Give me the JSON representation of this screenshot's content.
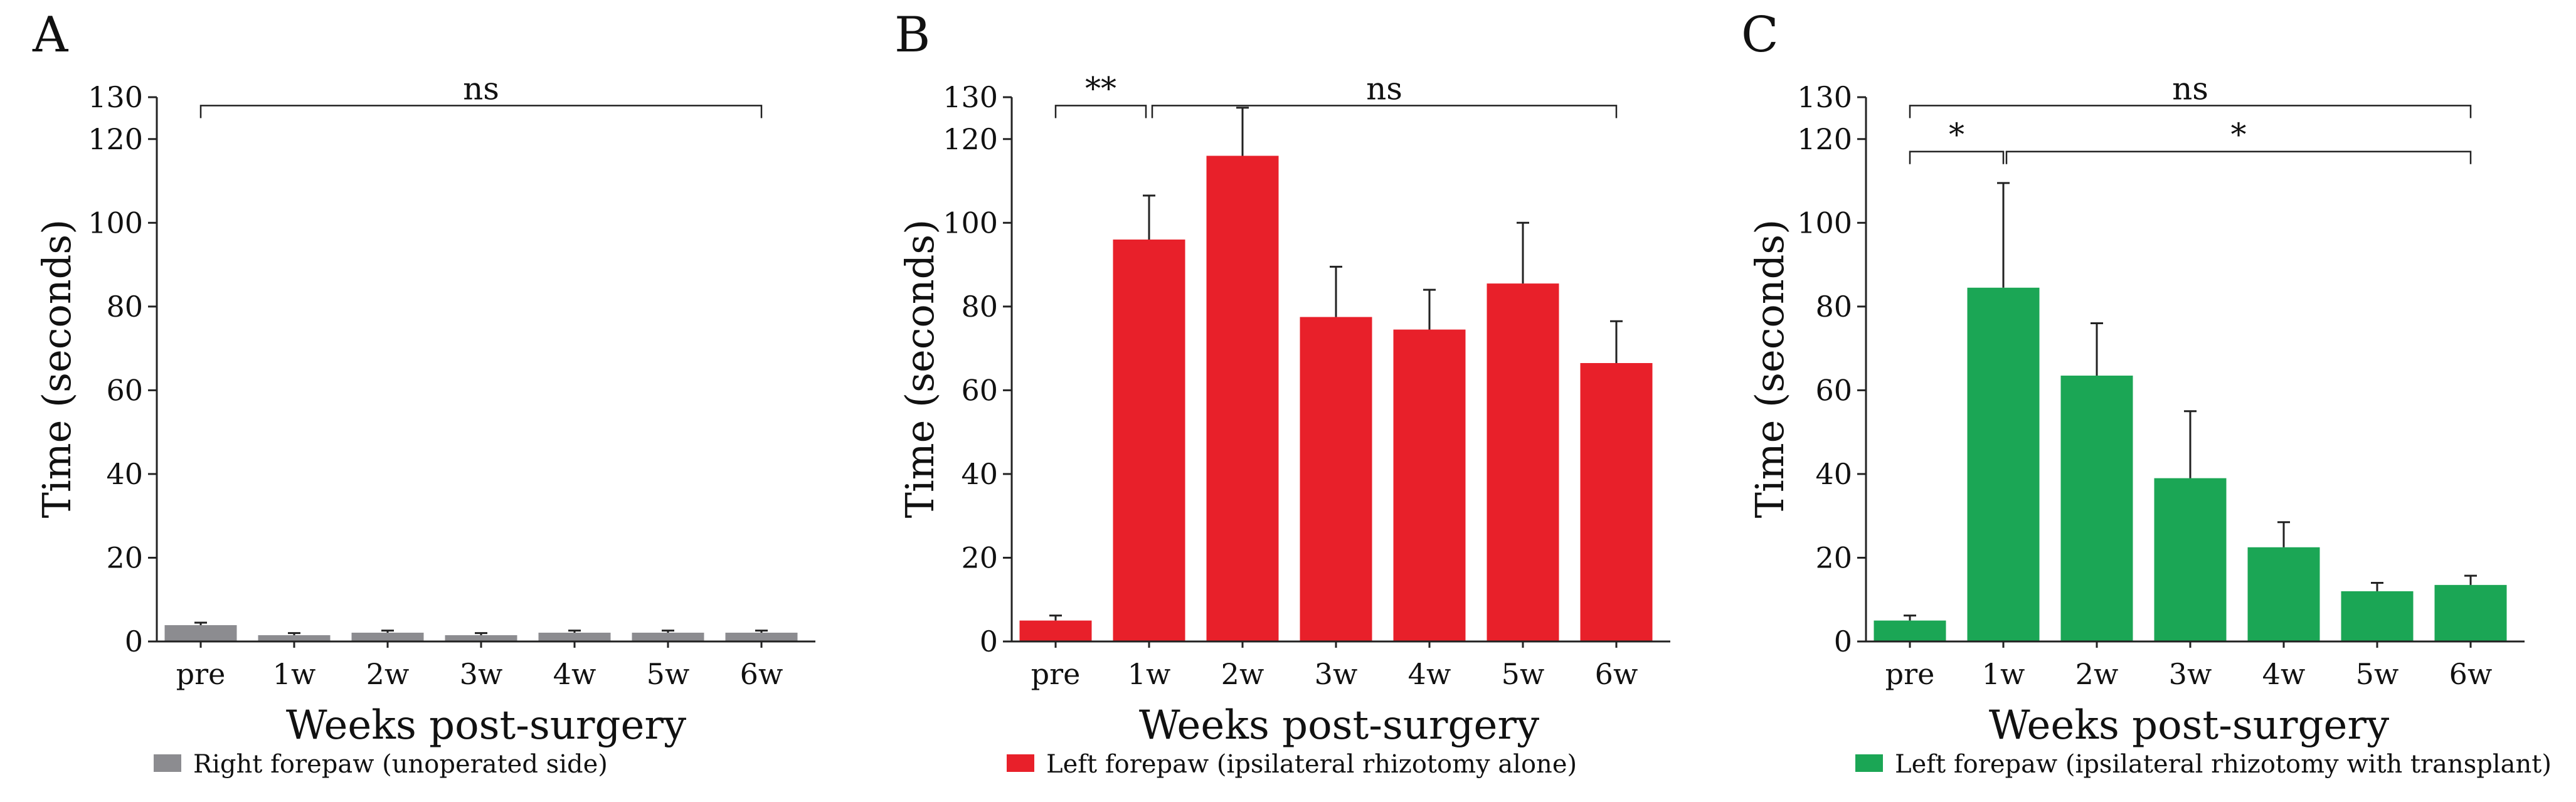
{
  "panels": [
    {
      "letter": "A",
      "chart_data": {
        "type": "bar",
        "categories": [
          "pre",
          "1w",
          "2w",
          "3w",
          "4w",
          "5w",
          "6w"
        ],
        "values": [
          3.9,
          1.5,
          2.1,
          1.5,
          2.1,
          2.1,
          2.1
        ],
        "errors": [
          0.6,
          0.5,
          0.5,
          0.5,
          0.5,
          0.5,
          0.5
        ],
        "xlabel": "Weeks post-surgery",
        "ylabel": "Time (seconds)",
        "ylim": [
          0,
          130
        ],
        "yticks": [
          0,
          20,
          40,
          60,
          80,
          100,
          120,
          130
        ],
        "grid": false,
        "color": "#8c8c90",
        "legend": "Right forepaw (unoperated side)",
        "significance": [
          {
            "from": "pre",
            "to": "6w",
            "label": "ns",
            "y": 128
          }
        ]
      }
    },
    {
      "letter": "B",
      "chart_data": {
        "type": "bar",
        "categories": [
          "pre",
          "1w",
          "2w",
          "3w",
          "4w",
          "5w",
          "6w"
        ],
        "values": [
          5,
          96,
          116,
          77.5,
          74.5,
          85.5,
          66.5
        ],
        "errors": [
          1.2,
          10.5,
          11.5,
          12,
          9.5,
          14.5,
          10
        ],
        "xlabel": "Weeks post-surgery",
        "ylabel": "Time (seconds)",
        "ylim": [
          0,
          130
        ],
        "yticks": [
          0,
          20,
          40,
          60,
          80,
          100,
          120,
          130
        ],
        "grid": false,
        "color": "#e8202a",
        "legend": "Left forepaw (ipsilateral rhizotomy alone)",
        "significance": [
          {
            "from": "pre",
            "to": "1w",
            "label": "**",
            "y": 128
          },
          {
            "from": "1w",
            "to": "6w",
            "label": "ns",
            "y": 128
          }
        ]
      }
    },
    {
      "letter": "C",
      "chart_data": {
        "type": "bar",
        "categories": [
          "pre",
          "1w",
          "2w",
          "3w",
          "4w",
          "5w",
          "6w"
        ],
        "values": [
          5,
          84.5,
          63.5,
          39,
          22.5,
          12,
          13.5
        ],
        "errors": [
          1.2,
          25,
          12.5,
          16,
          6,
          2,
          2.2
        ],
        "xlabel": "Weeks post-surgery",
        "ylabel": "Time (seconds)",
        "ylim": [
          0,
          130
        ],
        "yticks": [
          0,
          20,
          40,
          60,
          80,
          100,
          120,
          130
        ],
        "grid": false,
        "color": "#1ba655",
        "legend": "Left forepaw (ipsilateral rhizotomy with transplant)",
        "significance": [
          {
            "from": "pre",
            "to": "6w",
            "label": "ns",
            "y": 128
          },
          {
            "from": "pre",
            "to": "1w",
            "label": "*",
            "y": 117
          },
          {
            "from": "1w",
            "to": "6w",
            "label": "*",
            "y": 117
          }
        ]
      }
    }
  ]
}
